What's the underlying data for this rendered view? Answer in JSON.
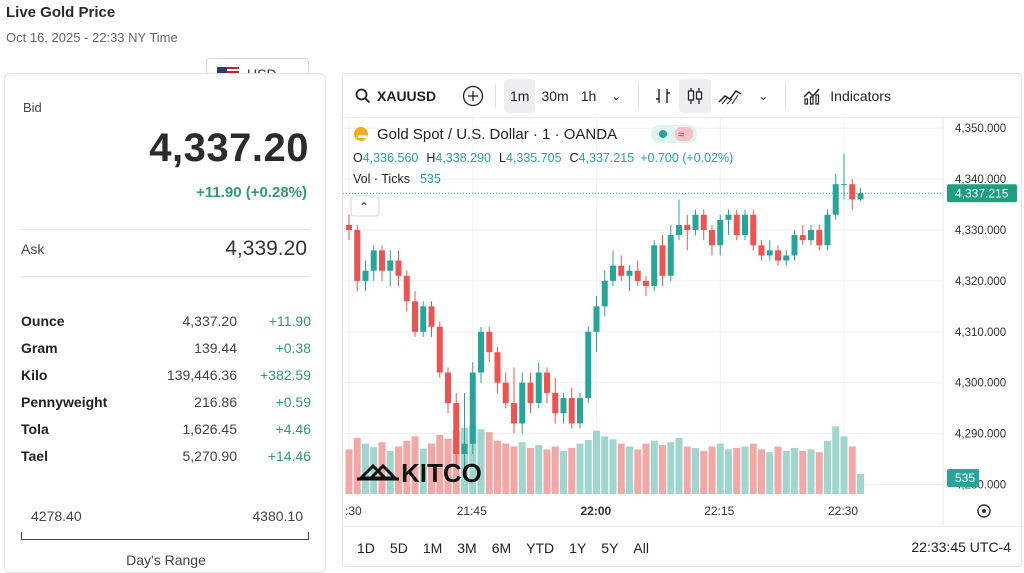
{
  "header": {
    "title": "Live Gold Price",
    "subtitle": "Oct 16, 2025 - 22:33 NY Time"
  },
  "currency": {
    "label": "USD"
  },
  "price": {
    "bid_label": "Bid",
    "bid": "4,337.20",
    "change": "+11.90 (+0.28%)",
    "ask_label": "Ask",
    "ask": "4,339.20"
  },
  "units": [
    {
      "name": "Ounce",
      "price": "4,337.20",
      "change": "+11.90"
    },
    {
      "name": "Gram",
      "price": "139.44",
      "change": "+0.38"
    },
    {
      "name": "Kilo",
      "price": "139,446.36",
      "change": "+382.59"
    },
    {
      "name": "Pennyweight",
      "price": "216.86",
      "change": "+0.59"
    },
    {
      "name": "Tola",
      "price": "1,626.45",
      "change": "+4.46"
    },
    {
      "name": "Tael",
      "price": "5,270.90",
      "change": "+14.46"
    }
  ],
  "days_range": {
    "low": "4278.40",
    "high": "4380.10",
    "title": "Day's Range"
  },
  "toolbar": {
    "symbol": "XAUUSD",
    "intervals": [
      "1m",
      "30m",
      "1h"
    ],
    "active_interval": "1m",
    "indicators": "Indicators"
  },
  "legend": {
    "title": "Gold Spot / U.S. Dollar · 1 · OANDA",
    "o_label": "O",
    "o": "4,336.560",
    "h_label": "H",
    "h": "4,338.290",
    "l_label": "L",
    "l": "4,335.705",
    "c_label": "C",
    "c": "4,337.215",
    "chg": "+0.700 (+0.02%)",
    "vol_label": "Vol · Ticks",
    "vol": "535"
  },
  "watermark": "KITCO",
  "timeframes": [
    "1D",
    "5D",
    "1M",
    "3M",
    "6M",
    "YTD",
    "1Y",
    "5Y",
    "All"
  ],
  "clock": "22:33:45 UTC-4",
  "colors": {
    "up": "#26a69a",
    "down": "#ef5350",
    "vol_up": "#9fd6cf",
    "vol_down": "#f4a8a6",
    "positive_text": "#2f9e6b"
  },
  "chart_data": {
    "type": "candlestick",
    "symbol": "XAUUSD",
    "interval": "1m",
    "y_ticks": [
      4280,
      4290,
      4300,
      4310,
      4320,
      4330,
      4340,
      4350
    ],
    "y_tick_labels": [
      "4,280.000",
      "4,290.000",
      "4,300.000",
      "4,310.000",
      "4,320.000",
      "4,330.000",
      "4,340.000",
      "4,350.000"
    ],
    "ylim": [
      4275,
      4352
    ],
    "x_tick_labels": [
      ":30",
      "21:45",
      "22:00",
      "22:15",
      "22:30"
    ],
    "x_tick_index": [
      0,
      15,
      30,
      45,
      60
    ],
    "last_price": 4337.215,
    "last_price_label": "4,337.215",
    "volume_label": "535",
    "candles": [
      {
        "o": 4331,
        "h": 4333,
        "l": 4328,
        "c": 4330,
        "v": 62
      },
      {
        "o": 4330,
        "h": 4331,
        "l": 4318,
        "c": 4320,
        "v": 78
      },
      {
        "o": 4320,
        "h": 4324,
        "l": 4318,
        "c": 4322,
        "v": 70
      },
      {
        "o": 4322,
        "h": 4327,
        "l": 4320,
        "c": 4326,
        "v": 65
      },
      {
        "o": 4326,
        "h": 4327,
        "l": 4320,
        "c": 4322,
        "v": 72
      },
      {
        "o": 4322,
        "h": 4326,
        "l": 4319,
        "c": 4324,
        "v": 60
      },
      {
        "o": 4324,
        "h": 4326,
        "l": 4319,
        "c": 4321,
        "v": 66
      },
      {
        "o": 4321,
        "h": 4322,
        "l": 4314,
        "c": 4316,
        "v": 74
      },
      {
        "o": 4316,
        "h": 4318,
        "l": 4309,
        "c": 4310,
        "v": 80
      },
      {
        "o": 4310,
        "h": 4316,
        "l": 4309,
        "c": 4315,
        "v": 63
      },
      {
        "o": 4315,
        "h": 4316,
        "l": 4309,
        "c": 4311,
        "v": 70
      },
      {
        "o": 4311,
        "h": 4312,
        "l": 4301,
        "c": 4302,
        "v": 82
      },
      {
        "o": 4302,
        "h": 4303,
        "l": 4294,
        "c": 4296,
        "v": 77
      },
      {
        "o": 4296,
        "h": 4298,
        "l": 4283,
        "c": 4286,
        "v": 88
      },
      {
        "o": 4286,
        "h": 4298,
        "l": 4281,
        "c": 4288,
        "v": 92
      },
      {
        "o": 4288,
        "h": 4304,
        "l": 4286,
        "c": 4302,
        "v": 95
      },
      {
        "o": 4302,
        "h": 4311,
        "l": 4300,
        "c": 4310,
        "v": 90
      },
      {
        "o": 4310,
        "h": 4311,
        "l": 4304,
        "c": 4306,
        "v": 86
      },
      {
        "o": 4306,
        "h": 4307,
        "l": 4298,
        "c": 4300,
        "v": 74
      },
      {
        "o": 4300,
        "h": 4302,
        "l": 4295,
        "c": 4296,
        "v": 70
      },
      {
        "o": 4296,
        "h": 4303,
        "l": 4290,
        "c": 4292,
        "v": 66
      },
      {
        "o": 4292,
        "h": 4302,
        "l": 4290,
        "c": 4300,
        "v": 72
      },
      {
        "o": 4300,
        "h": 4302,
        "l": 4294,
        "c": 4296,
        "v": 64
      },
      {
        "o": 4296,
        "h": 4304,
        "l": 4295,
        "c": 4302,
        "v": 68
      },
      {
        "o": 4302,
        "h": 4303,
        "l": 4296,
        "c": 4298,
        "v": 62
      },
      {
        "o": 4298,
        "h": 4301,
        "l": 4292,
        "c": 4294,
        "v": 66
      },
      {
        "o": 4294,
        "h": 4298,
        "l": 4292,
        "c": 4297,
        "v": 60
      },
      {
        "o": 4297,
        "h": 4299,
        "l": 4291,
        "c": 4292,
        "v": 64
      },
      {
        "o": 4292,
        "h": 4298,
        "l": 4291,
        "c": 4297,
        "v": 70
      },
      {
        "o": 4297,
        "h": 4311,
        "l": 4296,
        "c": 4310,
        "v": 75
      },
      {
        "o": 4310,
        "h": 4317,
        "l": 4306,
        "c": 4315,
        "v": 88
      },
      {
        "o": 4315,
        "h": 4322,
        "l": 4313,
        "c": 4320,
        "v": 80
      },
      {
        "o": 4320,
        "h": 4326,
        "l": 4319,
        "c": 4323,
        "v": 76
      },
      {
        "o": 4323,
        "h": 4325,
        "l": 4320,
        "c": 4321,
        "v": 70
      },
      {
        "o": 4321,
        "h": 4323,
        "l": 4318,
        "c": 4322,
        "v": 66
      },
      {
        "o": 4322,
        "h": 4324,
        "l": 4319,
        "c": 4320,
        "v": 62
      },
      {
        "o": 4320,
        "h": 4321,
        "l": 4317,
        "c": 4319,
        "v": 70
      },
      {
        "o": 4319,
        "h": 4328,
        "l": 4318,
        "c": 4327,
        "v": 74
      },
      {
        "o": 4327,
        "h": 4329,
        "l": 4319,
        "c": 4321,
        "v": 68
      },
      {
        "o": 4321,
        "h": 4331,
        "l": 4320,
        "c": 4329,
        "v": 72
      },
      {
        "o": 4329,
        "h": 4336,
        "l": 4328,
        "c": 4331,
        "v": 78
      },
      {
        "o": 4331,
        "h": 4333,
        "l": 4326,
        "c": 4330,
        "v": 66
      },
      {
        "o": 4330,
        "h": 4334,
        "l": 4329,
        "c": 4333,
        "v": 64
      },
      {
        "o": 4333,
        "h": 4334,
        "l": 4328,
        "c": 4330,
        "v": 60
      },
      {
        "o": 4330,
        "h": 4331,
        "l": 4325,
        "c": 4327,
        "v": 66
      },
      {
        "o": 4327,
        "h": 4333,
        "l": 4325,
        "c": 4332,
        "v": 70
      },
      {
        "o": 4332,
        "h": 4334,
        "l": 4329,
        "c": 4333,
        "v": 62
      },
      {
        "o": 4333,
        "h": 4334,
        "l": 4328,
        "c": 4329,
        "v": 64
      },
      {
        "o": 4329,
        "h": 4334,
        "l": 4328,
        "c": 4333,
        "v": 66
      },
      {
        "o": 4333,
        "h": 4334,
        "l": 4326,
        "c": 4327,
        "v": 70
      },
      {
        "o": 4327,
        "h": 4328,
        "l": 4324,
        "c": 4325,
        "v": 62
      },
      {
        "o": 4325,
        "h": 4328,
        "l": 4324,
        "c": 4326,
        "v": 58
      },
      {
        "o": 4326,
        "h": 4327,
        "l": 4323,
        "c": 4324,
        "v": 66
      },
      {
        "o": 4324,
        "h": 4326,
        "l": 4323,
        "c": 4325,
        "v": 60
      },
      {
        "o": 4325,
        "h": 4330,
        "l": 4324,
        "c": 4329,
        "v": 64
      },
      {
        "o": 4329,
        "h": 4331,
        "l": 4327,
        "c": 4328,
        "v": 60
      },
      {
        "o": 4328,
        "h": 4331,
        "l": 4327,
        "c": 4330,
        "v": 62
      },
      {
        "o": 4330,
        "h": 4331,
        "l": 4326,
        "c": 4327,
        "v": 58
      },
      {
        "o": 4327,
        "h": 4334,
        "l": 4326,
        "c": 4333,
        "v": 74
      },
      {
        "o": 4333,
        "h": 4341,
        "l": 4332,
        "c": 4339,
        "v": 94
      },
      {
        "o": 4339,
        "h": 4345,
        "l": 4336,
        "c": 4339,
        "v": 80
      },
      {
        "o": 4339,
        "h": 4340,
        "l": 4334,
        "c": 4336,
        "v": 66
      },
      {
        "o": 4336,
        "h": 4338.29,
        "l": 4335.705,
        "c": 4337.215,
        "v": 28
      }
    ]
  }
}
